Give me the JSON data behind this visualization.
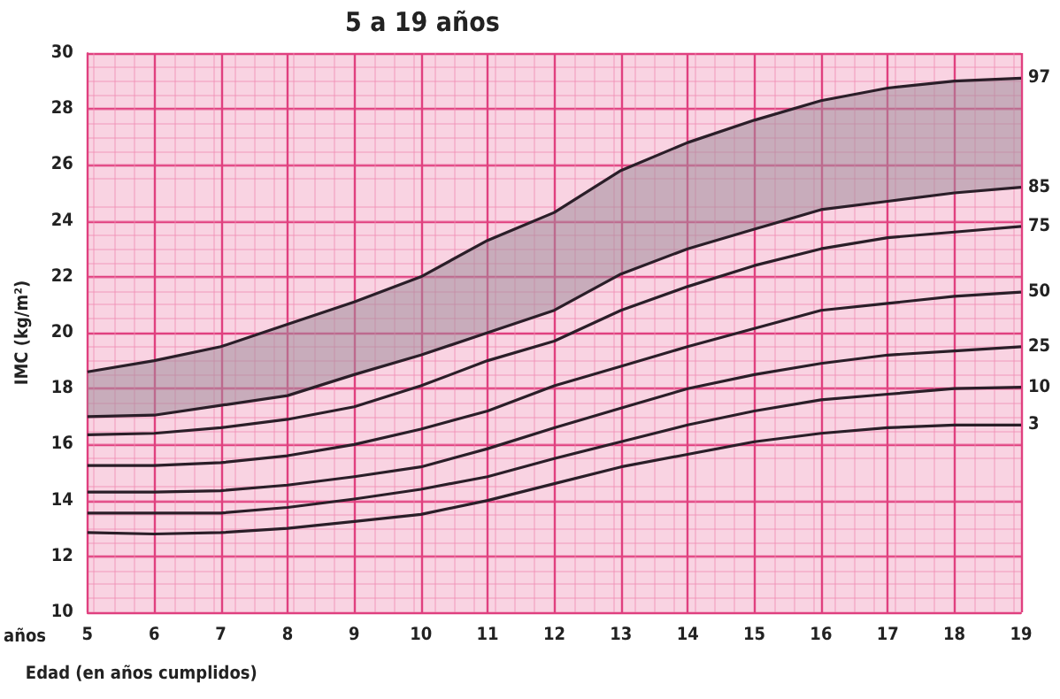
{
  "chart_data": {
    "type": "line",
    "title": "5 a 19 años",
    "xlabel": "Edad (en años cumplidos)",
    "ylabel": "IMC (kg/m²)",
    "annotations": [
      "años"
    ],
    "x": [
      5,
      6,
      7,
      8,
      9,
      10,
      11,
      12,
      13,
      14,
      15,
      16,
      17,
      18,
      19
    ],
    "series": [
      {
        "name": "97",
        "color": "#2a1e28",
        "values": [
          18.6,
          19.0,
          19.5,
          20.3,
          21.1,
          22.0,
          23.3,
          24.3,
          25.8,
          26.8,
          27.6,
          28.3,
          28.75,
          29.0,
          29.1
        ],
        "lower": [
          17.0,
          17.05,
          17.4,
          17.75,
          18.5,
          19.2,
          20.0,
          20.8,
          22.1,
          23.0,
          23.7,
          24.4,
          24.7,
          25.0,
          25.2
        ],
        "upper": [
          18.6,
          19.0,
          19.5,
          20.3,
          21.1,
          22.0,
          23.3,
          24.3,
          25.8,
          26.8,
          27.6,
          28.3,
          28.75,
          29.0,
          29.1
        ]
      },
      {
        "name": "85",
        "color": "#2a1e28",
        "values": [
          17.0,
          17.05,
          17.4,
          17.75,
          18.5,
          19.2,
          20.0,
          20.8,
          22.1,
          23.0,
          23.7,
          24.4,
          24.7,
          25.0,
          25.2
        ]
      },
      {
        "name": "75",
        "color": "#2a1e28",
        "values": [
          16.35,
          16.4,
          16.6,
          16.9,
          17.35,
          18.1,
          19.0,
          19.7,
          20.8,
          21.65,
          22.4,
          23.0,
          23.4,
          23.6,
          23.8
        ]
      },
      {
        "name": "50",
        "color": "#2a1e28",
        "values": [
          15.25,
          15.25,
          15.35,
          15.6,
          16.0,
          16.55,
          17.2,
          18.1,
          18.8,
          19.5,
          20.15,
          20.8,
          21.05,
          21.3,
          21.45
        ]
      },
      {
        "name": "25",
        "color": "#2a1e28",
        "values": [
          14.3,
          14.3,
          14.35,
          14.55,
          14.85,
          15.2,
          15.85,
          16.6,
          17.3,
          18.0,
          18.5,
          18.9,
          19.2,
          19.35,
          19.5
        ]
      },
      {
        "name": "10",
        "color": "#2a1e28",
        "values": [
          13.55,
          13.55,
          13.55,
          13.75,
          14.05,
          14.4,
          14.85,
          15.5,
          16.1,
          16.7,
          17.2,
          17.6,
          17.8,
          18.0,
          18.05
        ]
      },
      {
        "name": "3",
        "color": "#2a1e28",
        "values": [
          12.85,
          12.8,
          12.85,
          13.0,
          13.25,
          13.5,
          14.0,
          14.6,
          15.2,
          15.65,
          16.1,
          16.4,
          16.6,
          16.7,
          16.7
        ]
      }
    ],
    "xlim": [
      5,
      19
    ],
    "xticks": [
      5,
      6,
      7,
      8,
      9,
      10,
      11,
      12,
      13,
      14,
      15,
      16,
      17,
      18,
      19
    ],
    "ylim": [
      10,
      30
    ],
    "yticks": [
      10,
      12,
      14,
      16,
      18,
      20,
      22,
      24,
      26,
      28,
      30
    ],
    "grid": true,
    "legend": false,
    "marker": "none",
    "line_style": "solid"
  }
}
